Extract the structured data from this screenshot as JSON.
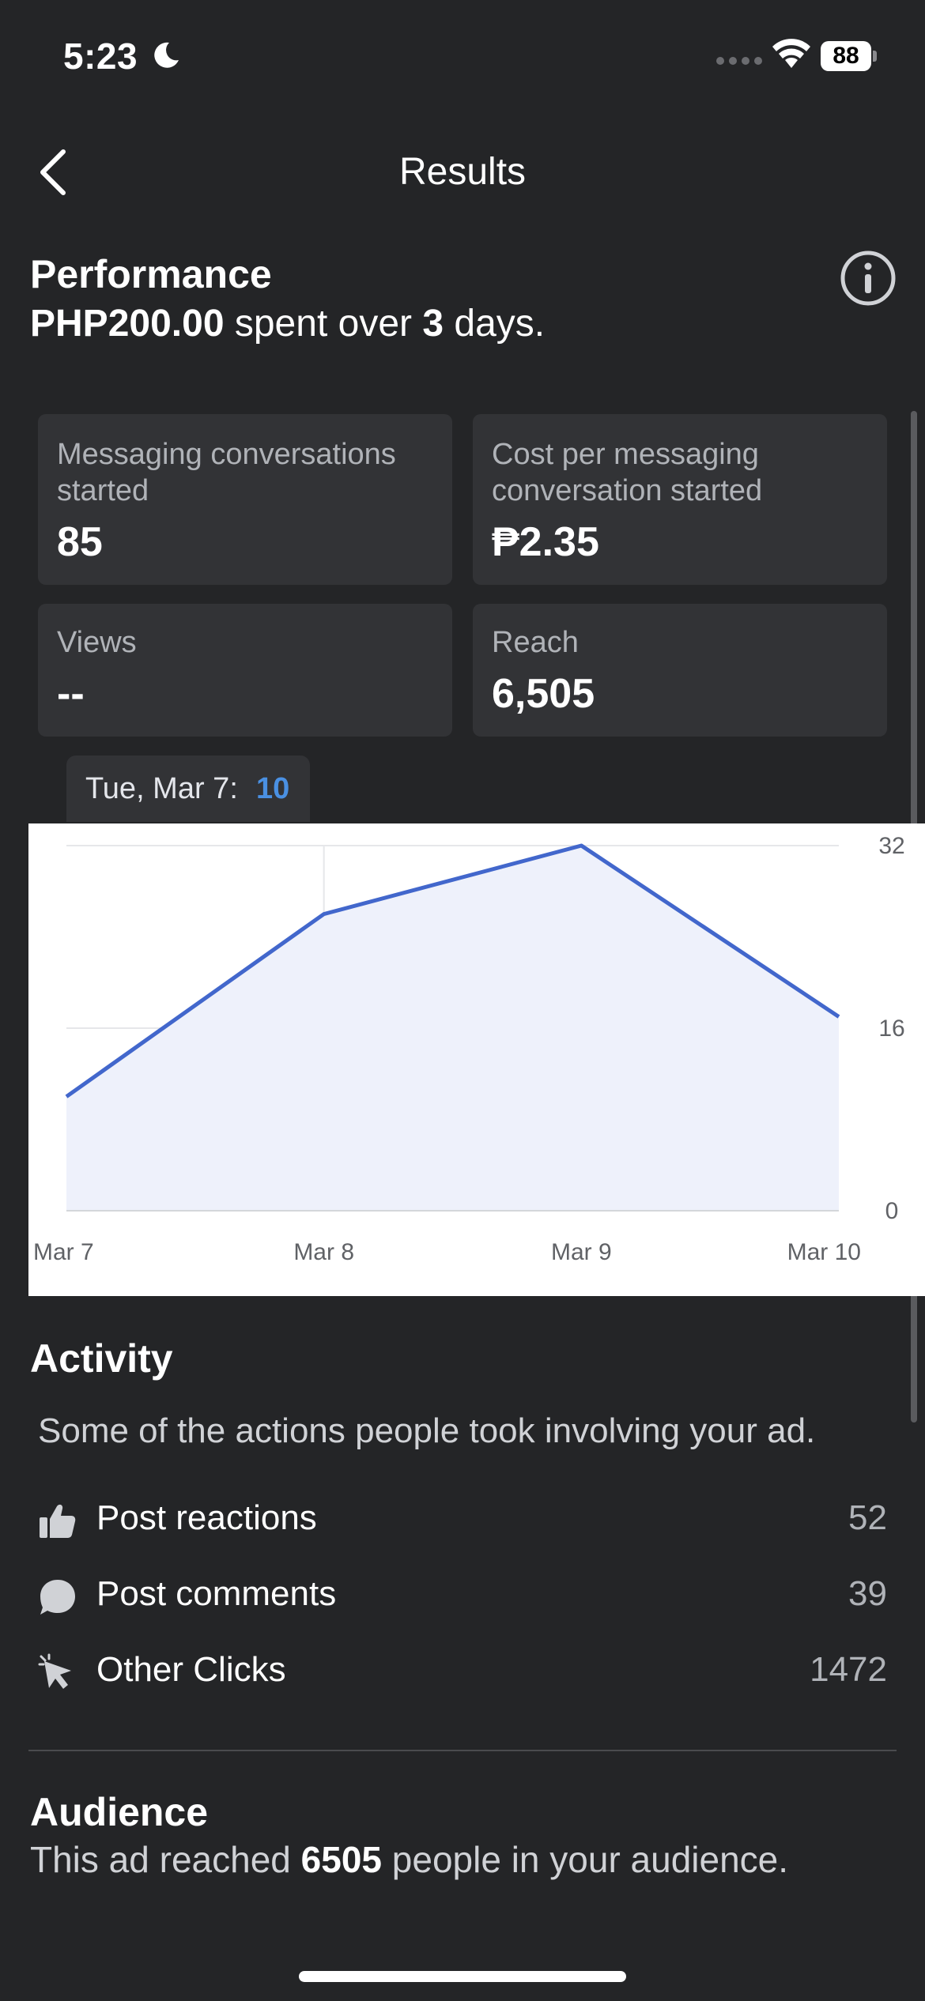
{
  "status_bar": {
    "time": "5:23",
    "battery": "88"
  },
  "header": {
    "title": "Results"
  },
  "performance": {
    "title": "Performance",
    "amount": "PHP200.00",
    "spent_over": "spent over",
    "days_count": "3",
    "days_suffix": "days."
  },
  "metrics": [
    {
      "label": "Messaging conversations started",
      "value": "85"
    },
    {
      "label": "Cost per messaging conversation started",
      "value": "₱2.35"
    },
    {
      "label": "Views",
      "value": "--"
    },
    {
      "label": "Reach",
      "value": "6,505"
    }
  ],
  "tooltip": {
    "label": "Tue, Mar 7:",
    "value": "10"
  },
  "chart_data": {
    "type": "area",
    "categories": [
      "Mar 7",
      "Mar 8",
      "Mar 9",
      "Mar 10"
    ],
    "series": [
      {
        "values": [
          10,
          26,
          32,
          17
        ]
      }
    ],
    "y_ticks": [
      "32",
      "16",
      "0"
    ],
    "ylim": [
      0,
      32
    ],
    "line_color": "#4267cc",
    "fill_color": "#eef1fb",
    "grid": true
  },
  "activity": {
    "title": "Activity",
    "subtitle": "Some of the actions people took involving your ad.",
    "items": [
      {
        "icon": "thumbs-up-icon",
        "label": "Post reactions",
        "value": "52"
      },
      {
        "icon": "comment-icon",
        "label": "Post comments",
        "value": "39"
      },
      {
        "icon": "cursor-click-icon",
        "label": "Other Clicks",
        "value": "1472"
      }
    ]
  },
  "audience": {
    "title": "Audience",
    "prefix": "This ad reached",
    "count": "6505",
    "suffix": "people in your audience."
  }
}
